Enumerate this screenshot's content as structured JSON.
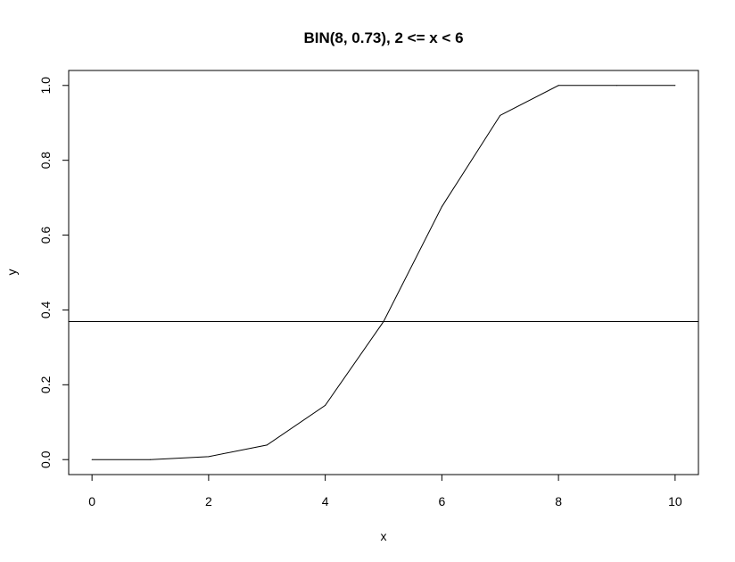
{
  "chart_data": {
    "type": "line",
    "title": "BIN(8, 0.73), 2 <= x < 6",
    "xlabel": "x",
    "ylabel": "y",
    "xlim": [
      -0.4,
      10.4
    ],
    "ylim": [
      -0.04,
      1.04
    ],
    "x_ticks": [
      0,
      2,
      4,
      6,
      8,
      10
    ],
    "y_ticks": [
      "0.0",
      "0.2",
      "0.4",
      "0.6",
      "0.8",
      "1.0"
    ],
    "grid": false,
    "series": [
      {
        "x": [
          0,
          1,
          2,
          3,
          4,
          5,
          6,
          7,
          8,
          9,
          10
        ],
        "y": [
          0.0,
          0.0,
          0.008,
          0.039,
          0.145,
          0.369,
          0.676,
          0.92,
          1.0,
          1.0,
          1.0
        ]
      }
    ],
    "hlines": [
      0.369
    ],
    "line_color": "#000000"
  }
}
